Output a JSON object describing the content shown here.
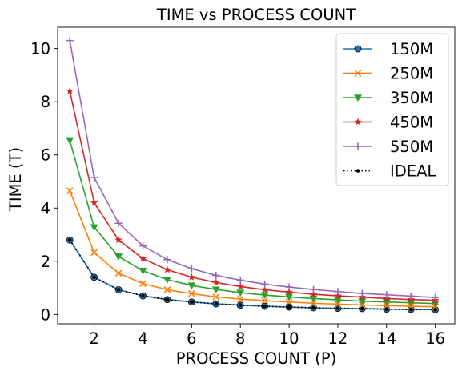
{
  "chart_data": {
    "type": "line",
    "title": "TIME vs PROCESS COUNT",
    "xlabel": "PROCESS COUNT (P)",
    "ylabel": "TIME (T)",
    "xlim": [
      0.5,
      16.8
    ],
    "ylim": [
      -0.35,
      10.8
    ],
    "xticks": [
      2,
      4,
      6,
      8,
      10,
      12,
      14,
      16
    ],
    "yticks": [
      0,
      2,
      4,
      6,
      8,
      10
    ],
    "grid": false,
    "legend_position": "top-right",
    "x": [
      1,
      2,
      3,
      4,
      5,
      6,
      7,
      8,
      9,
      10,
      11,
      12,
      13,
      14,
      15,
      16
    ],
    "series": [
      {
        "name": "150M",
        "color": "#1f77b4",
        "marker": "circle",
        "linestyle": "solid",
        "values": [
          2.8,
          1.4,
          0.93,
          0.7,
          0.56,
          0.47,
          0.4,
          0.35,
          0.31,
          0.28,
          0.25,
          0.23,
          0.22,
          0.2,
          0.19,
          0.18
        ]
      },
      {
        "name": "250M",
        "color": "#ff7f0e",
        "marker": "x",
        "linestyle": "solid",
        "values": [
          4.65,
          2.33,
          1.55,
          1.16,
          0.93,
          0.78,
          0.66,
          0.58,
          0.52,
          0.47,
          0.42,
          0.39,
          0.36,
          0.33,
          0.31,
          0.29
        ]
      },
      {
        "name": "350M",
        "color": "#2ca02c",
        "marker": "triangle-down",
        "linestyle": "solid",
        "values": [
          6.55,
          3.28,
          2.18,
          1.64,
          1.31,
          1.09,
          0.94,
          0.82,
          0.73,
          0.66,
          0.6,
          0.55,
          0.5,
          0.47,
          0.44,
          0.41
        ]
      },
      {
        "name": "450M",
        "color": "#d62728",
        "marker": "star",
        "linestyle": "solid",
        "values": [
          8.4,
          4.2,
          2.8,
          2.1,
          1.68,
          1.4,
          1.2,
          1.05,
          0.93,
          0.84,
          0.76,
          0.7,
          0.65,
          0.6,
          0.56,
          0.53
        ]
      },
      {
        "name": "550M",
        "color": "#9467bd",
        "marker": "plus",
        "linestyle": "solid",
        "values": [
          10.3,
          5.15,
          3.43,
          2.58,
          2.06,
          1.72,
          1.47,
          1.29,
          1.14,
          1.03,
          0.94,
          0.86,
          0.79,
          0.74,
          0.69,
          0.64
        ]
      },
      {
        "name": "IDEAL",
        "color": "#000000",
        "marker": "point",
        "linestyle": "dotted",
        "values": [
          2.8,
          1.4,
          0.93,
          0.7,
          0.56,
          0.47,
          0.4,
          0.35,
          0.31,
          0.28,
          0.25,
          0.23,
          0.22,
          0.2,
          0.19,
          0.18
        ]
      }
    ]
  }
}
